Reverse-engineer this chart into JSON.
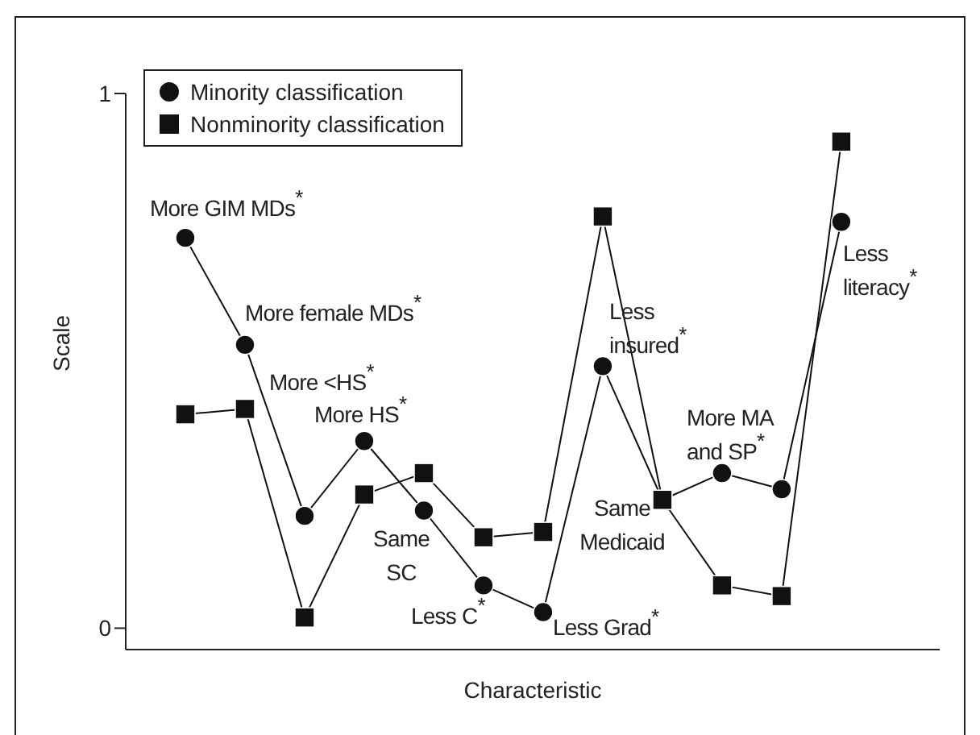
{
  "chart_data": {
    "type": "line",
    "xlabel": "Characteristic",
    "ylabel": "Scale",
    "categories": [
      null,
      null,
      null,
      null,
      null,
      null,
      null,
      null,
      null,
      null,
      null,
      null
    ],
    "series": [
      {
        "name": "Minority classification",
        "color": "#111111",
        "marker": "circle",
        "values": [
          0.73,
          0.53,
          0.21,
          0.35,
          0.22,
          0.08,
          0.03,
          0.49,
          0.24,
          0.29,
          0.26,
          0.76
        ]
      },
      {
        "name": "Nonminority classification",
        "color": "#111111",
        "marker": "square",
        "values": [
          0.4,
          0.41,
          0.02,
          0.25,
          0.29,
          0.17,
          0.18,
          0.77,
          0.24,
          0.08,
          0.06,
          0.91
        ]
      }
    ],
    "ylim": [
      -0.04,
      1
    ],
    "yticks": [
      0,
      1
    ],
    "grid": false,
    "legend": "top left",
    "line_style": "solid",
    "tick_labels": "y",
    "annotations": [
      "More GIM MDs$^{*}$",
      "More female MDs$^{*}$",
      "More <HS$^{*}$",
      "More HS$^{*}$",
      "Same\nSC",
      "Less C$^{*}$",
      "Less Grad$^{*}$",
      "Less\ninsured$^{*}$",
      "Same\nMedicaid",
      "More MA\nand SP$^{*}$",
      "Less\nliteracy$^{*}$"
    ]
  }
}
